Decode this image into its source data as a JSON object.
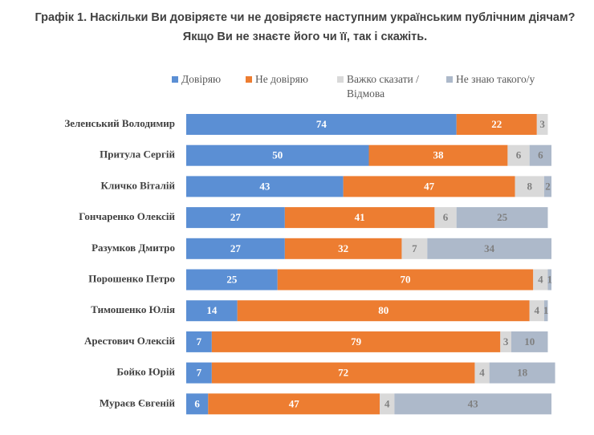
{
  "chart_data": {
    "type": "stacked-barh",
    "title": "Графік 1. Наскільки Ви довіряєте чи не довіряєте наступним українським публічним діячам? Якщо Ви не знаєте його чи її, так і скажіть.",
    "categories": [
      "Зеленський Володимир",
      "Притула Сергій",
      "Кличко Віталій",
      "Гончаренко Олексій",
      "Разумков Дмитро",
      "Порошенко Петро",
      "Тимошенко Юлія",
      "Арестович Олексій",
      "Бойко Юрій",
      "Мураєв Євгеній"
    ],
    "xlim": [
      0,
      100
    ],
    "series": [
      {
        "name": "Довіряю",
        "color": "#5b8fd4",
        "values": [
          74,
          50,
          43,
          27,
          27,
          25,
          14,
          7,
          7,
          6
        ]
      },
      {
        "name": "Не довіряю",
        "color": "#ed7d31",
        "values": [
          22,
          38,
          47,
          41,
          32,
          70,
          80,
          79,
          72,
          47
        ]
      },
      {
        "name": "Важко сказати / Відмова",
        "color": "#d9d9d9",
        "values": [
          3,
          6,
          8,
          6,
          7,
          4,
          4,
          3,
          4,
          4
        ]
      },
      {
        "name": "Не знаю такого/у",
        "color": "#adb9ca",
        "values": [
          0,
          6,
          2,
          25,
          34,
          1,
          1,
          10,
          18,
          43
        ]
      }
    ]
  }
}
